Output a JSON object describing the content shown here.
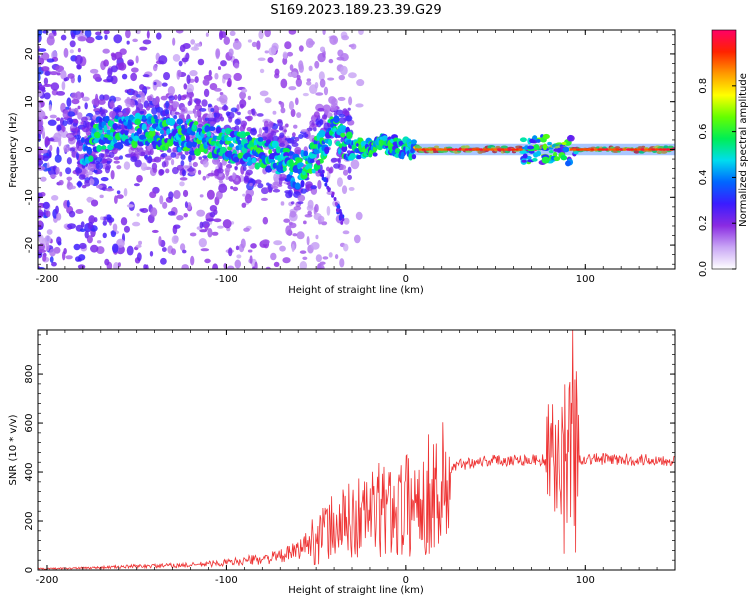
{
  "title": "S169.2023.189.23.39.G29",
  "chart_data": [
    {
      "type": "heatmap",
      "xlabel": "Height of straight line (km)",
      "ylabel": "Frequency (Hz)",
      "xlim": [
        -205,
        150
      ],
      "ylim": [
        -25,
        25
      ],
      "xticks": [
        -200,
        -100,
        0,
        100
      ],
      "yticks": [
        -20,
        -10,
        0,
        10,
        20
      ],
      "colorbar": {
        "label": "Normalized spectral amplitude",
        "range": [
          0,
          1
        ],
        "ticks": [
          0.0,
          0.2,
          0.4,
          0.6,
          0.8
        ],
        "colors": [
          "#ffffff",
          "#c9a6f5",
          "#8a2be2",
          "#3b1cff",
          "#0066ff",
          "#00ddee",
          "#00ee55",
          "#66ff00",
          "#ffff00",
          "#ff9900",
          "#ff2200",
          "#ff0066"
        ]
      },
      "ridge": [
        {
          "x": -175,
          "freq": 3
        },
        {
          "x": -150,
          "freq": 4
        },
        {
          "x": -125,
          "freq": 3
        },
        {
          "x": -100,
          "freq": 1
        },
        {
          "x": -85,
          "freq": 0
        },
        {
          "x": -70,
          "freq": -2
        },
        {
          "x": -60,
          "freq": -5
        },
        {
          "x": -48,
          "freq": 0
        },
        {
          "x": -40,
          "freq": 4
        },
        {
          "x": -30,
          "freq": 0
        },
        {
          "x": -15,
          "freq": 1
        },
        {
          "x": 0,
          "freq": 0.5
        },
        {
          "x": 10,
          "freq": 0
        },
        {
          "x": 70,
          "freq": 0
        },
        {
          "x": 85,
          "freq": 1
        },
        {
          "x": 95,
          "freq": 0
        },
        {
          "x": 150,
          "freq": 0
        }
      ]
    },
    {
      "type": "line",
      "xlabel": "Height of straight line (km)",
      "ylabel": "SNR (10 * v/v)",
      "xlim": [
        -205,
        150
      ],
      "ylim": [
        0,
        980
      ],
      "xticks": [
        -200,
        -100,
        0,
        100
      ],
      "yticks": [
        0,
        200,
        400,
        600,
        800
      ],
      "color": "#ee3333",
      "envelope": [
        {
          "x": -205,
          "y": 5
        },
        {
          "x": -180,
          "y": 8
        },
        {
          "x": -150,
          "y": 15
        },
        {
          "x": -120,
          "y": 20
        },
        {
          "x": -100,
          "y": 30
        },
        {
          "x": -80,
          "y": 45
        },
        {
          "x": -70,
          "y": 55
        },
        {
          "x": -60,
          "y": 80
        },
        {
          "x": -50,
          "y": 150
        },
        {
          "x": -40,
          "y": 200
        },
        {
          "x": -30,
          "y": 230
        },
        {
          "x": -20,
          "y": 270
        },
        {
          "x": -10,
          "y": 280
        },
        {
          "x": 0,
          "y": 300
        },
        {
          "x": 10,
          "y": 340
        },
        {
          "x": 20,
          "y": 390
        },
        {
          "x": 30,
          "y": 430
        },
        {
          "x": 40,
          "y": 445
        },
        {
          "x": 60,
          "y": 450
        },
        {
          "x": 80,
          "y": 450
        },
        {
          "x": 100,
          "y": 455
        },
        {
          "x": 120,
          "y": 450
        },
        {
          "x": 150,
          "y": 450
        }
      ],
      "spike": {
        "x": 93,
        "y": 980
      }
    }
  ]
}
